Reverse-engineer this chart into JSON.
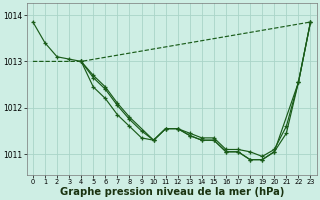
{
  "bg_color": "#ceeee4",
  "grid_color": "#aad4c8",
  "line_color": "#1a5c1a",
  "xlabel": "Graphe pression niveau de la mer (hPa)",
  "xlabel_fontsize": 7.2,
  "yticks": [
    1011,
    1012,
    1013,
    1014
  ],
  "xlim": [
    -0.5,
    23.5
  ],
  "ylim": [
    1010.55,
    1014.25
  ],
  "series_dashed": {
    "x": [
      0,
      4,
      23
    ],
    "y": [
      1013.0,
      1013.0,
      1013.85
    ],
    "linestyle": "--",
    "has_markers": false
  },
  "series_A": {
    "x": [
      0,
      1,
      2,
      3,
      4
    ],
    "y": [
      1013.85,
      1013.4,
      1013.1,
      1013.05,
      1013.0
    ],
    "linestyle": "-",
    "has_markers": true
  },
  "series_B": {
    "x": [
      4,
      5,
      6,
      7,
      8,
      9,
      10,
      11,
      12,
      13,
      14,
      15,
      16,
      17,
      18,
      19,
      20,
      21,
      22,
      23
    ],
    "y": [
      1013.0,
      1012.65,
      1012.4,
      1012.05,
      1011.75,
      1011.5,
      1011.3,
      1011.55,
      1011.55,
      1011.45,
      1011.35,
      1011.35,
      1011.1,
      1011.1,
      1011.05,
      1010.95,
      1011.1,
      1011.6,
      1012.55,
      1013.85
    ],
    "linestyle": "-",
    "has_markers": true
  },
  "series_C": {
    "x": [
      4,
      5,
      6,
      7,
      8,
      9,
      10,
      11,
      12,
      13,
      14,
      15,
      16,
      17,
      18,
      19,
      20,
      21,
      22,
      23
    ],
    "y": [
      1013.0,
      1012.45,
      1012.2,
      1011.85,
      1011.6,
      1011.35,
      1011.3,
      1011.55,
      1011.55,
      1011.4,
      1011.3,
      1011.3,
      1011.05,
      1011.05,
      1010.88,
      1010.88,
      1011.05,
      1011.45,
      1012.55,
      1013.85
    ],
    "linestyle": "-",
    "has_markers": true
  },
  "series_D": {
    "x": [
      4,
      5,
      6,
      7,
      8,
      10,
      11,
      12,
      13,
      14,
      15,
      16,
      17,
      18,
      19,
      20,
      22,
      23
    ],
    "y": [
      1013.0,
      1012.7,
      1012.45,
      1012.1,
      1011.8,
      1011.3,
      1011.55,
      1011.55,
      1011.4,
      1011.3,
      1011.3,
      1011.05,
      1011.05,
      1010.88,
      1010.88,
      1011.05,
      1012.55,
      1013.85
    ],
    "linestyle": "-",
    "has_markers": true
  }
}
